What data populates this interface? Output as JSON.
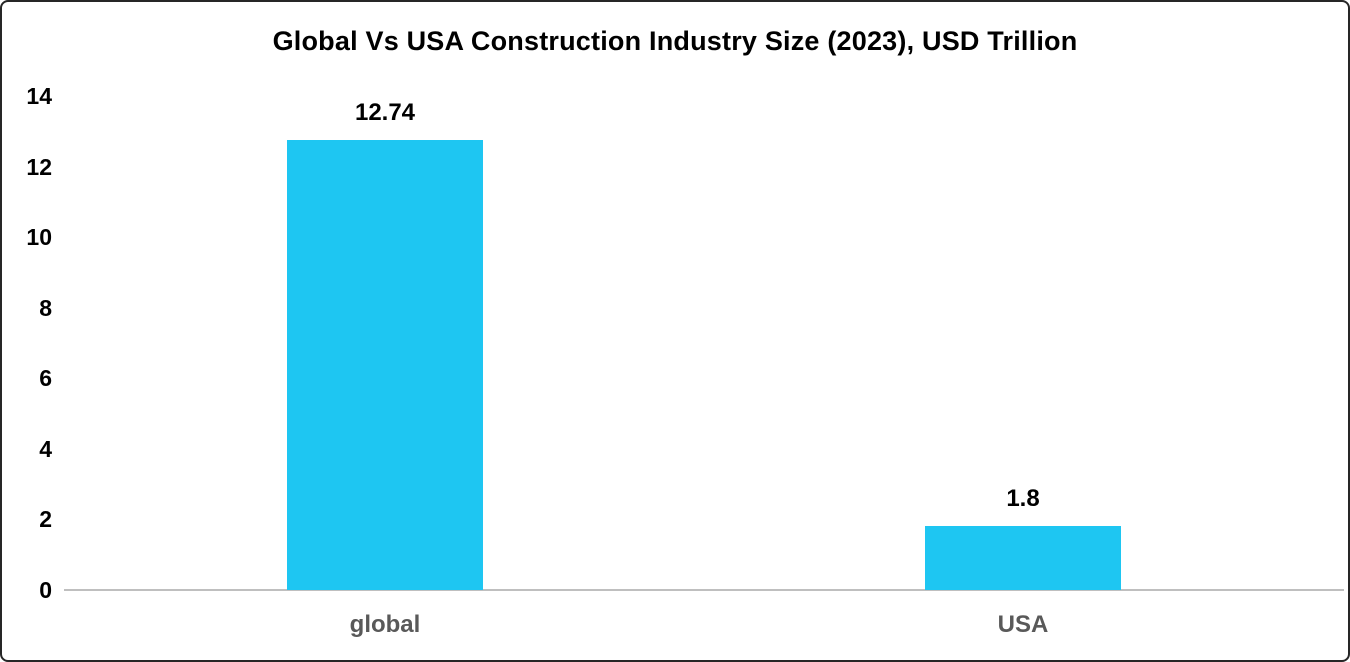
{
  "chart_data": {
    "type": "bar",
    "title": "Global Vs USA Construction Industry Size (2023), USD Trillion",
    "categories": [
      "global",
      "USA"
    ],
    "values": [
      12.74,
      1.8
    ],
    "data_labels": [
      "12.74",
      "1.8"
    ],
    "xlabel": "",
    "ylabel": "",
    "ylim": [
      0,
      14
    ],
    "yticks": [
      "0",
      "2",
      "4",
      "6",
      "8",
      "10",
      "12",
      "14"
    ],
    "ytick_values": [
      0,
      2,
      4,
      6,
      8,
      10,
      12,
      14
    ],
    "grid": "off",
    "legend": "none",
    "colors": {
      "bar_fill": "#1ec6f2",
      "title_text": "#000000",
      "value_label_text": "#000000",
      "category_label_text": "#595959",
      "tick_label_text": "#000000",
      "axis_line": "#bfbfbf",
      "frame_border": "#262626",
      "background": "#ffffff"
    }
  }
}
